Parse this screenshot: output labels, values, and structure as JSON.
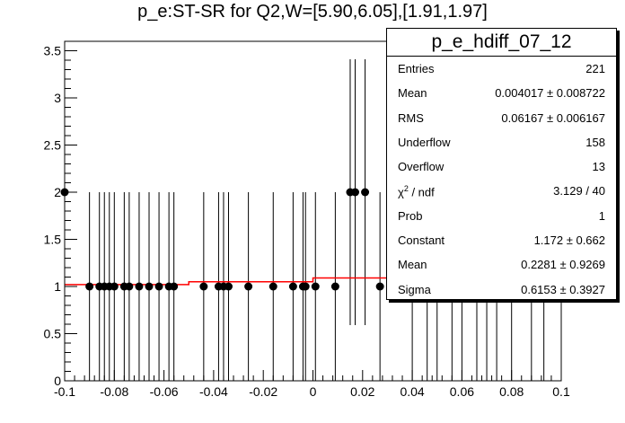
{
  "chart_data": {
    "type": "scatter",
    "title": "p_e:ST-SR for Q2,W=[5.90,6.05],[1.91,1.97]",
    "xlabel": "",
    "ylabel": "",
    "xlim": [
      -0.1,
      0.1
    ],
    "ylim": [
      0,
      3.6
    ],
    "x_ticks": [
      -0.1,
      -0.08,
      -0.06,
      -0.04,
      -0.02,
      0,
      0.02,
      0.04,
      0.06,
      0.08,
      0.1
    ],
    "x_tick_labels": [
      "-0.1",
      "-0.08",
      "-0.06",
      "-0.04",
      "-0.02",
      "0",
      "0.02",
      "0.04",
      "0.06",
      "0.08",
      "0.1"
    ],
    "y_ticks": [
      0,
      0.5,
      1,
      1.5,
      2,
      2.5,
      3,
      3.5
    ],
    "y_tick_labels": [
      "0",
      "0.5",
      "1",
      "1.5",
      "2",
      "2.5",
      "3",
      "3.5"
    ],
    "grid": false,
    "points": [
      {
        "x": -0.1,
        "y": 2,
        "err": 2
      },
      {
        "x": -0.09,
        "y": 1,
        "err": 1
      },
      {
        "x": -0.086,
        "y": 1,
        "err": 1
      },
      {
        "x": -0.084,
        "y": 1,
        "err": 1
      },
      {
        "x": -0.082,
        "y": 1,
        "err": 1
      },
      {
        "x": -0.08,
        "y": 1,
        "err": 1
      },
      {
        "x": -0.076,
        "y": 1,
        "err": 1
      },
      {
        "x": -0.074,
        "y": 1,
        "err": 1
      },
      {
        "x": -0.07,
        "y": 1,
        "err": 1
      },
      {
        "x": -0.066,
        "y": 1,
        "err": 1
      },
      {
        "x": -0.062,
        "y": 1,
        "err": 1
      },
      {
        "x": -0.058,
        "y": 1,
        "err": 1
      },
      {
        "x": -0.056,
        "y": 1,
        "err": 1
      },
      {
        "x": -0.044,
        "y": 1,
        "err": 1
      },
      {
        "x": -0.038,
        "y": 1,
        "err": 1
      },
      {
        "x": -0.036,
        "y": 1,
        "err": 1
      },
      {
        "x": -0.034,
        "y": 1,
        "err": 1
      },
      {
        "x": -0.026,
        "y": 1,
        "err": 1
      },
      {
        "x": -0.016,
        "y": 1,
        "err": 1
      },
      {
        "x": -0.008,
        "y": 1,
        "err": 1
      },
      {
        "x": -0.004,
        "y": 1,
        "err": 1
      },
      {
        "x": -0.003,
        "y": 1,
        "err": 1
      },
      {
        "x": 0.001,
        "y": 1,
        "err": 1
      },
      {
        "x": 0.009,
        "y": 1,
        "err": 1
      },
      {
        "x": 0.015,
        "y": 2,
        "err": 1.41
      },
      {
        "x": 0.017,
        "y": 2,
        "err": 1.41
      },
      {
        "x": 0.021,
        "y": 2,
        "err": 1.41
      },
      {
        "x": 0.027,
        "y": 1,
        "err": 1
      },
      {
        "x": 0.04,
        "y": 1,
        "err": 1
      },
      {
        "x": 0.046,
        "y": 1,
        "err": 1
      },
      {
        "x": 0.05,
        "y": 1,
        "err": 1
      },
      {
        "x": 0.056,
        "y": 1,
        "err": 1
      },
      {
        "x": 0.06,
        "y": 1,
        "err": 1
      },
      {
        "x": 0.066,
        "y": 1,
        "err": 1
      },
      {
        "x": 0.07,
        "y": 1,
        "err": 1
      },
      {
        "x": 0.074,
        "y": 1,
        "err": 1
      },
      {
        "x": 0.08,
        "y": 1,
        "err": 1
      },
      {
        "x": 0.088,
        "y": 1,
        "err": 1
      },
      {
        "x": 0.093,
        "y": 1,
        "err": 1
      }
    ],
    "fit": {
      "x": [
        -0.1,
        -0.05,
        0,
        0.03
      ],
      "y": [
        1.02,
        1.05,
        1.09,
        1.12
      ]
    }
  },
  "stats": {
    "title": "p_e_hdiff_07_12",
    "rows": [
      {
        "label": "Entries",
        "value": "221"
      },
      {
        "label": "Mean",
        "value": "0.004017  ± 0.008722"
      },
      {
        "label": "RMS",
        "value": "0.06167  ± 0.006167"
      },
      {
        "label": "Underflow",
        "value": "158"
      },
      {
        "label": "Overflow",
        "value": "13"
      },
      {
        "label": "χ2 / ndf",
        "value": "3.129 / 40"
      },
      {
        "label": "Prob",
        "value": "1"
      },
      {
        "label": "Constant",
        "value": "1.172 ± 0.662"
      },
      {
        "label": "Mean",
        "value": "0.2281 ± 0.9269"
      },
      {
        "label": "Sigma",
        "value": "0.6153 ± 0.3927"
      }
    ]
  },
  "colors": {
    "axis": "#000000",
    "marker": "#000000",
    "fit": "#ff0000"
  }
}
